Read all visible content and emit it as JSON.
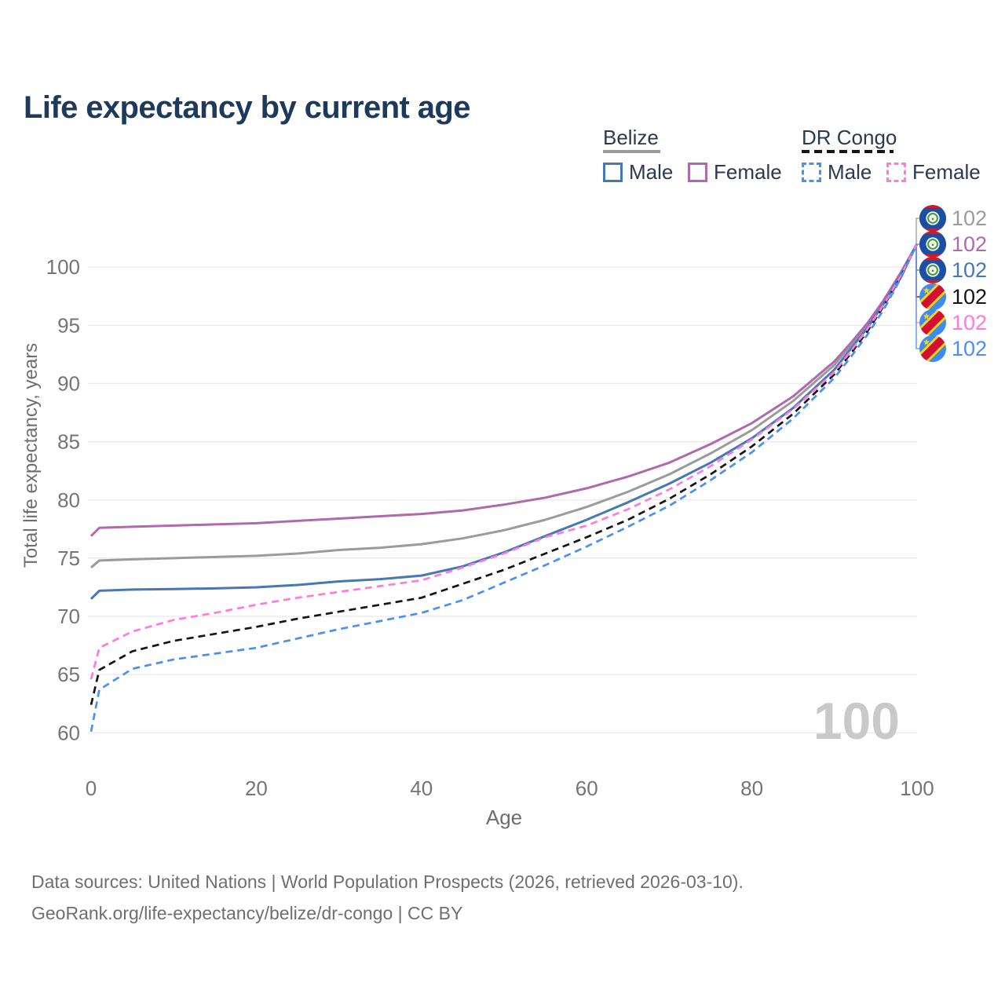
{
  "title": "Life expectancy by current age",
  "legend": {
    "groups": [
      {
        "label": "Belize",
        "line_style": "solid",
        "line_color": "#9b9b9b",
        "items": [
          {
            "label": "Male",
            "color": "#4678b8",
            "dash": false
          },
          {
            "label": "Female",
            "color": "#b069ae",
            "dash": false
          }
        ]
      },
      {
        "label": "DR Congo",
        "line_style": "dashed",
        "line_color": "#141414",
        "items": [
          {
            "label": "Male",
            "color": "#4a90f2",
            "dash": true
          },
          {
            "label": "Female",
            "color": "#ff7ade",
            "dash": true
          }
        ]
      }
    ]
  },
  "footer": {
    "line1": "Data sources: United Nations | World Population Prospects (2026, retrieved 2026-03-10).",
    "line2": "GeoRank.org/life-expectancy/belize/dr-congo | CC BY"
  },
  "chart_data": {
    "type": "line",
    "title": "Life expectancy by current age",
    "xlabel": "Age",
    "ylabel": "Total life expectancy, years",
    "xlim": [
      0,
      100
    ],
    "ylim": [
      60,
      102
    ],
    "x_ticks": [
      0,
      20,
      40,
      60,
      80,
      100
    ],
    "y_ticks": [
      60,
      65,
      70,
      75,
      80,
      85,
      90,
      95,
      100
    ],
    "grid": "horizontal",
    "grid_color": "#ececec",
    "tick_color": "#757575",
    "axis_title_color": "#6e6e6e",
    "watermark_age": "100",
    "watermark_color": "#c9c9c9",
    "legend_position": "top-right",
    "ages": [
      0,
      1,
      5,
      10,
      15,
      20,
      25,
      30,
      35,
      40,
      45,
      50,
      55,
      60,
      65,
      70,
      75,
      80,
      85,
      90,
      92,
      94,
      96,
      98,
      100
    ],
    "series": [
      {
        "id": "belize-total",
        "country": "Belize",
        "sex": "Both",
        "color": "#9b9b9b",
        "dash": false,
        "flag_icon": "belize-flag-icon",
        "end_value_label": "102",
        "values": [
          74.2,
          74.8,
          74.9,
          75.0,
          75.1,
          75.2,
          75.4,
          75.7,
          75.9,
          76.2,
          76.7,
          77.4,
          78.3,
          79.4,
          80.7,
          82.2,
          84.0,
          86.0,
          88.5,
          91.6,
          93.3,
          95.0,
          97.0,
          99.4,
          102
        ]
      },
      {
        "id": "belize-female",
        "country": "Belize",
        "sex": "Female",
        "color": "#b069ae",
        "dash": false,
        "flag_icon": "belize-flag-icon",
        "end_value_label": "102",
        "values": [
          76.9,
          77.6,
          77.7,
          77.8,
          77.9,
          78.0,
          78.2,
          78.4,
          78.6,
          78.8,
          79.1,
          79.6,
          80.2,
          81.0,
          82.0,
          83.2,
          84.8,
          86.6,
          88.9,
          91.9,
          93.5,
          95.2,
          97.2,
          99.5,
          102
        ]
      },
      {
        "id": "belize-male",
        "country": "Belize",
        "sex": "Male",
        "color": "#4678b8",
        "dash": false,
        "flag_icon": "belize-flag-icon",
        "end_value_label": "102",
        "values": [
          71.5,
          72.2,
          72.3,
          72.35,
          72.4,
          72.5,
          72.7,
          73.0,
          73.2,
          73.5,
          74.3,
          75.5,
          76.9,
          78.3,
          79.8,
          81.4,
          83.2,
          85.3,
          87.9,
          91.2,
          93.0,
          94.8,
          96.9,
          99.3,
          102
        ]
      },
      {
        "id": "dr-congo-total",
        "country": "DR Congo",
        "sex": "Both",
        "color": "#141414",
        "dash": true,
        "flag_icon": "dr-congo-flag-icon",
        "end_value_label": "102",
        "values": [
          62.4,
          65.4,
          67.0,
          67.9,
          68.5,
          69.1,
          69.8,
          70.4,
          71.0,
          71.6,
          72.8,
          74.0,
          75.4,
          76.8,
          78.3,
          80.1,
          82.2,
          84.6,
          87.4,
          90.8,
          92.6,
          94.5,
          96.7,
          99.1,
          102
        ]
      },
      {
        "id": "dr-congo-female",
        "country": "DR Congo",
        "sex": "Female",
        "color": "#ff7ade",
        "dash": true,
        "flag_icon": "dr-congo-flag-icon",
        "end_value_label": "102",
        "values": [
          64.6,
          67.3,
          68.7,
          69.7,
          70.3,
          71.0,
          71.6,
          72.1,
          72.6,
          73.1,
          74.2,
          75.4,
          76.8,
          77.8,
          79.2,
          80.9,
          82.9,
          85.2,
          87.8,
          91.0,
          92.8,
          94.7,
          96.8,
          99.2,
          102
        ]
      },
      {
        "id": "dr-congo-male",
        "country": "DR Congo",
        "sex": "Male",
        "color": "#4a90f2",
        "dash": true,
        "flag_icon": "dr-congo-flag-icon",
        "end_value_label": "102",
        "values": [
          60.1,
          63.7,
          65.5,
          66.3,
          66.8,
          67.3,
          68.1,
          68.9,
          69.6,
          70.3,
          71.4,
          72.9,
          74.4,
          76.0,
          77.7,
          79.5,
          81.7,
          84.1,
          87.0,
          90.5,
          92.3,
          94.2,
          96.4,
          99.0,
          102
        ]
      }
    ]
  }
}
